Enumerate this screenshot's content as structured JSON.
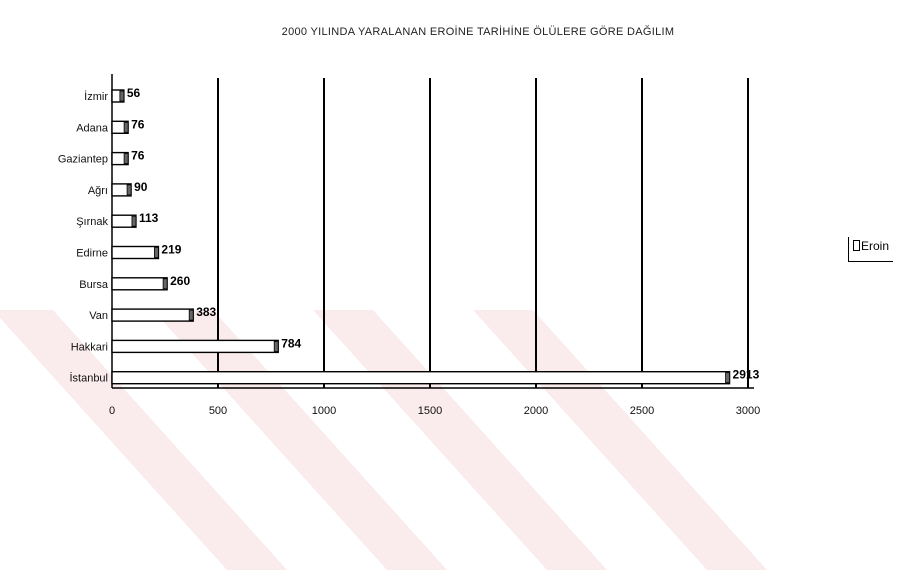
{
  "chart_data": {
    "type": "bar",
    "orientation": "horizontal",
    "title": "2000 YILINDA YARALANAN EROİNE TARİHİNE ÖLÜLERE GÖRE DAĞILIM",
    "categories": [
      "İzmir",
      "Adana",
      "Gaziantep",
      "Ağrı",
      "Şırnak",
      "Edirne",
      "Bursa",
      "Van",
      "Hakkari",
      "İstanbul"
    ],
    "values": [
      56,
      76,
      76,
      90,
      113,
      219,
      260,
      383,
      784,
      2913
    ],
    "value_labels": [
      "56",
      "76",
      "76",
      "90",
      "113",
      "219",
      "260",
      "383",
      "784",
      "2913"
    ],
    "series": [
      {
        "name": "Eroin",
        "values": [
          56,
          76,
          76,
          90,
          113,
          219,
          260,
          383,
          784,
          2913
        ]
      }
    ],
    "xlim": [
      0,
      3000
    ],
    "x_ticks": [
      "0",
      "500",
      "1000",
      "1500",
      "2000",
      "2500",
      "3000"
    ],
    "grid": "vertical",
    "legend": "right",
    "bar_color": "#ffffff",
    "grid_color": "#000000"
  }
}
